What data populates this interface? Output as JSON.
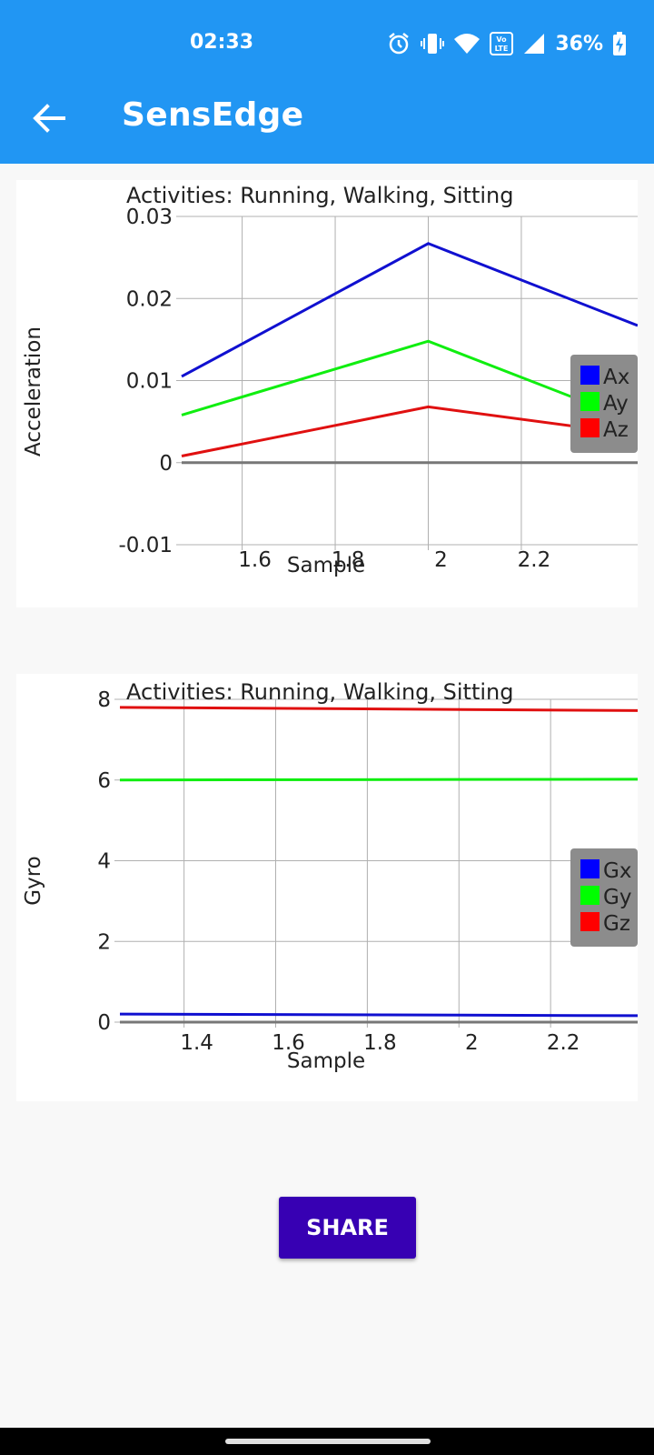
{
  "status_bar": {
    "time": "02:33",
    "battery": "36%",
    "icons": [
      "alarm-icon",
      "vibrate-icon",
      "wifi-icon",
      "volte-icon",
      "signal-icon",
      "battery-charging-icon"
    ]
  },
  "app_bar": {
    "title": "SensEdge",
    "back_icon": "arrow-back-icon"
  },
  "share_label": "SHARE",
  "colors": {
    "app_bar": "#2196f3",
    "button": "#3700b3",
    "series_x": "#1010d0",
    "series_y": "#10ee10",
    "series_z": "#e01010",
    "legend_bg": "#8c8c8c"
  },
  "chart_data": [
    {
      "type": "line",
      "title": "Activities: Running, Walking, Sitting",
      "xlabel": "Sample",
      "ylabel": "Acceleration",
      "xlim": [
        1.47,
        2.45
      ],
      "ylim": [
        -0.01,
        0.03
      ],
      "xticks": [
        1.6,
        1.8,
        2,
        2.2
      ],
      "xtick_labels": [
        "1.6",
        "1.8",
        "2",
        "2.2"
      ],
      "yticks": [
        -0.01,
        0,
        0.01,
        0.02,
        0.03
      ],
      "ytick_labels": [
        "-0.01",
        "0",
        "0.01",
        "0.02",
        "0.03"
      ],
      "grid": true,
      "legend_position": "right",
      "x": [
        1.47,
        2,
        2.45
      ],
      "series": [
        {
          "name": "Ax",
          "color": "#1010d0",
          "values": [
            0.0105,
            0.0267,
            0.0167
          ]
        },
        {
          "name": "Ay",
          "color": "#10ee10",
          "values": [
            0.0058,
            0.0148,
            0.0049
          ]
        },
        {
          "name": "Az",
          "color": "#e01010",
          "values": [
            0.0008,
            0.0068,
            0.0034
          ]
        }
      ]
    },
    {
      "type": "line",
      "title": "Activities: Running, Walking, Sitting",
      "xlabel": "Sample",
      "ylabel": "Gyro",
      "xlim": [
        1.26,
        2.39
      ],
      "ylim": [
        0,
        8
      ],
      "xticks": [
        1.4,
        1.6,
        1.8,
        2,
        2.2
      ],
      "xtick_labels": [
        "1.4",
        "1.6",
        "1.8",
        "2",
        "2.2"
      ],
      "yticks": [
        0,
        2,
        4,
        6,
        8
      ],
      "ytick_labels": [
        "0",
        "2",
        "4",
        "6",
        "8"
      ],
      "grid": true,
      "legend_position": "right",
      "x": [
        1.26,
        2.39
      ],
      "series": [
        {
          "name": "Gx",
          "color": "#1010d0",
          "values": [
            0.2,
            0.16
          ]
        },
        {
          "name": "Gy",
          "color": "#10ee10",
          "values": [
            6.0,
            6.02
          ]
        },
        {
          "name": "Gz",
          "color": "#e01010",
          "values": [
            7.8,
            7.72
          ]
        }
      ]
    }
  ]
}
